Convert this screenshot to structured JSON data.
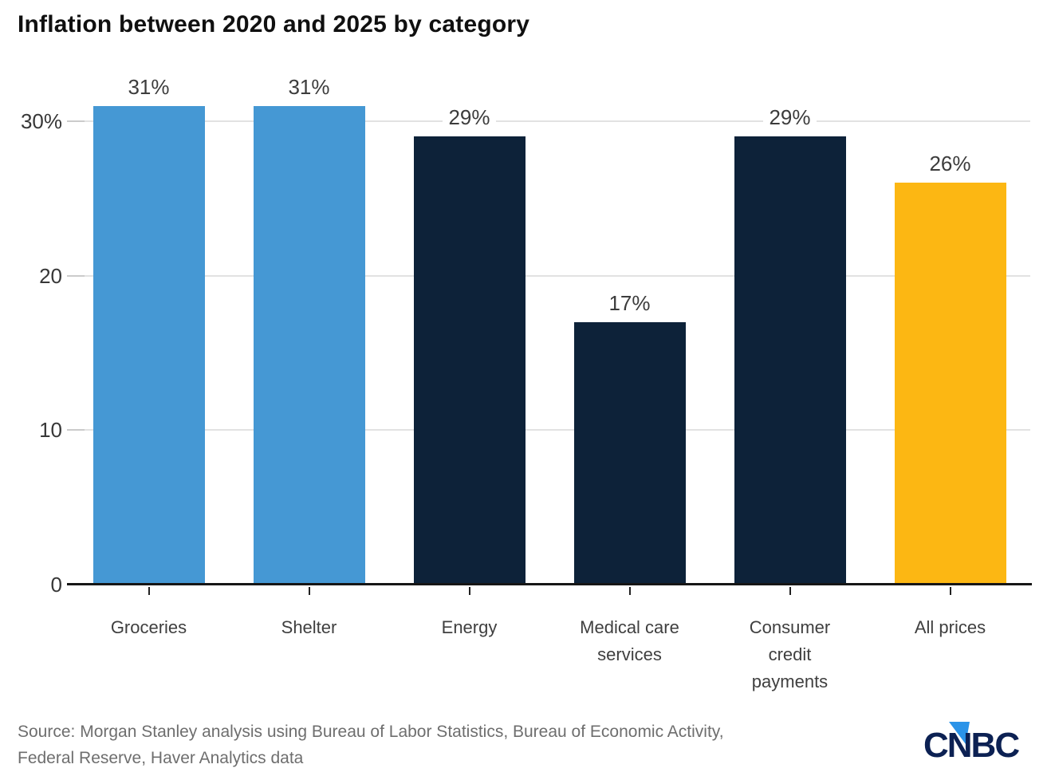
{
  "title": "Inflation between 2020 and 2025 by category",
  "source": "Source: Morgan Stanley analysis using Bureau of Labor Statistics, Bureau of Economic Activity,\nFederal Reserve, Haver Analytics data",
  "logo": {
    "text": "CNBC"
  },
  "colors": {
    "blue": "#4598d4",
    "navy": "#0d2239",
    "gold": "#fcb713",
    "grid": "#e2e2e2",
    "axis": "#161616",
    "logo_navy": "#0c2153",
    "logo_blue": "#2a93e8"
  },
  "chart_data": {
    "type": "bar",
    "title": "Inflation between 2020 and 2025 by category",
    "categories": [
      "Groceries",
      "Shelter",
      "Energy",
      "Medical care\nservices",
      "Consumer\ncredit\npayments",
      "All prices"
    ],
    "values": [
      31,
      31,
      29,
      17,
      29,
      26
    ],
    "value_labels": [
      "31%",
      "31%",
      "29%",
      "17%",
      "29%",
      "26%"
    ],
    "bar_colors": [
      "#4598d4",
      "#4598d4",
      "#0d2239",
      "#0d2239",
      "#0d2239",
      "#fcb713"
    ],
    "xlabel": "",
    "ylabel": "",
    "ylim": [
      0,
      32
    ],
    "yticks": [
      {
        "value": 0,
        "label": "0"
      },
      {
        "value": 10,
        "label": "10"
      },
      {
        "value": 20,
        "label": "20"
      },
      {
        "value": 30,
        "label": "30%"
      }
    ],
    "grid": "horizontal-only",
    "legend": "none",
    "unit": "percent"
  }
}
